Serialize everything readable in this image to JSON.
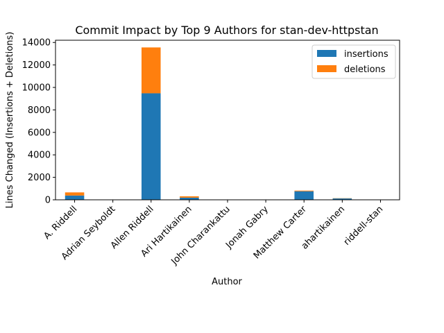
{
  "chart_data": {
    "type": "bar",
    "stacked": true,
    "title": "Commit Impact by Top 9 Authors for stan-dev-httpstan",
    "xlabel": "Author",
    "ylabel": "Lines Changed (Insertions + Deletions)",
    "categories": [
      "A. Riddell",
      "Adrian Seyboldt",
      "Allen Riddell",
      "Ari Hartikainen",
      "John Charankattu",
      "Jonah Gabry",
      "Matthew Carter",
      "ahartikainen",
      "riddell-stan"
    ],
    "series": [
      {
        "name": "insertions",
        "color": "#1f77b4",
        "values": [
          380,
          10,
          9480,
          190,
          5,
          5,
          760,
          120,
          5
        ]
      },
      {
        "name": "deletions",
        "color": "#ff7f0e",
        "values": [
          280,
          5,
          4080,
          120,
          2,
          2,
          60,
          20,
          2
        ]
      }
    ],
    "ylim": [
      0,
      14200
    ],
    "yticks": [
      0,
      2000,
      4000,
      6000,
      8000,
      10000,
      12000,
      14000
    ],
    "ytick_labels": [
      "0",
      "2000",
      "4000",
      "6000",
      "8000",
      "10000",
      "12000",
      "14000"
    ],
    "legend": {
      "position": "top-right",
      "entries": [
        "insertions",
        "deletions"
      ]
    },
    "grid": false
  }
}
